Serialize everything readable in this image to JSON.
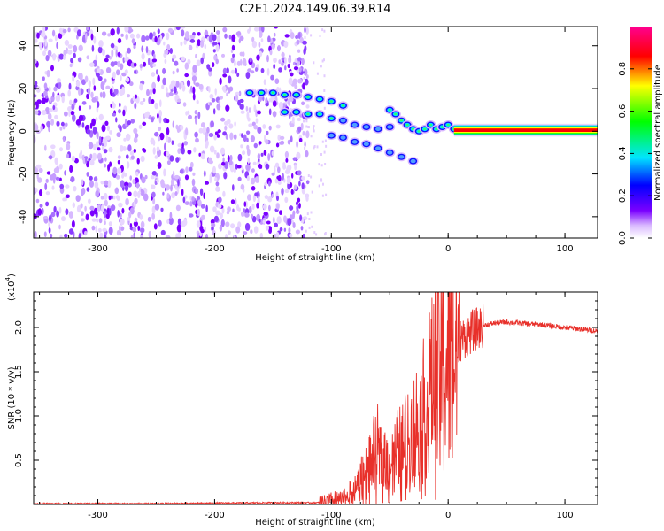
{
  "title": "C2E1.2024.149.06.39.R14",
  "chart_data": [
    {
      "type": "heatmap",
      "name": "spectrogram",
      "xlabel": "Height of straight line (km)",
      "ylabel": "Frequency (Hz)",
      "xlim": [
        -355,
        128
      ],
      "ylim": [
        -50,
        49
      ],
      "x_ticks": [
        -300,
        -200,
        -100,
        0,
        100
      ],
      "y_ticks": [
        -40,
        -20,
        0,
        20,
        40
      ],
      "colorbar": {
        "label": "Normalized spectral amplitude",
        "range": [
          0,
          1
        ],
        "ticks": [
          "0.0",
          "0.2",
          "0.4",
          "0.6",
          "0.8"
        ],
        "colors": [
          "#ffffff",
          "#7a00ff",
          "#0000ff",
          "#00e5ff",
          "#00ff00",
          "#ffff00",
          "#ff0000",
          "#ff0090"
        ]
      },
      "features": {
        "noise_region_x": [
          -355,
          -120
        ],
        "signal_band_y": [
          -1,
          2
        ],
        "signal_band_x": [
          5,
          128
        ]
      }
    },
    {
      "type": "line",
      "name": "snr",
      "xlabel": "Height of straight line (km)",
      "ylabel": "SNR (10 * v/v)",
      "ylabel_multiplier": "(x10",
      "ylabel_multiplier_exp": "4",
      "ylabel_multiplier_close": ")",
      "xlim": [
        -355,
        128
      ],
      "ylim": [
        0,
        2.4
      ],
      "x_ticks": [
        -300,
        -200,
        -100,
        0,
        100
      ],
      "y_ticks": [
        "0.5",
        "1.0",
        "1.5",
        "2.0"
      ],
      "color": "#e8302a",
      "series": [
        {
          "x": [
            -355,
            -250,
            -150,
            -110,
            -100,
            -90,
            -80,
            -70,
            -60,
            -50,
            -40,
            -30,
            -20,
            -15,
            -10,
            -5,
            0,
            5,
            10,
            20,
            30,
            40,
            50,
            60,
            80,
            100,
            128
          ],
          "y": [
            0.01,
            0.01,
            0.02,
            0.02,
            0.03,
            0.05,
            0.15,
            0.35,
            0.55,
            0.45,
            0.6,
            0.75,
            1.0,
            1.3,
            1.45,
            1.55,
            1.6,
            1.75,
            1.85,
            1.95,
            2.02,
            2.05,
            2.06,
            2.05,
            2.03,
            2.0,
            1.96
          ]
        }
      ]
    }
  ]
}
